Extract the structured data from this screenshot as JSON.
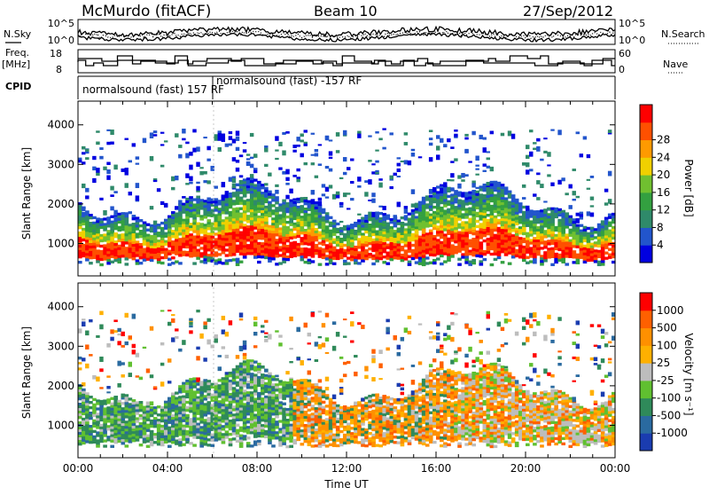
{
  "header": {
    "station": "McMurdo (fitACF)",
    "beam": "Beam 10",
    "date": "27/Sep/2012"
  },
  "summary": {
    "left_labels": [
      "N.Sky",
      "Freq.",
      "[MHz]",
      "CPID"
    ],
    "right_labels": [
      "N.Search",
      "Nave"
    ],
    "count_ticks": [
      "10^5",
      "10^0"
    ],
    "freq_ticks": [
      "18",
      "8"
    ],
    "nave_ticks": [
      "60",
      "0"
    ],
    "cpid_labels": [
      "normalsound (fast) 157 RF",
      "normalsound (fast) -157 RF"
    ]
  },
  "colors": {
    "power": [
      "#0000e0",
      "#2255cc",
      "#2f8a6a",
      "#33a040",
      "#70c030",
      "#f0d000",
      "#ff9a00",
      "#ff5000",
      "#ff0000"
    ],
    "velocity": [
      "#1a3cb0",
      "#2a6aa0",
      "#2f8a5a",
      "#60c030",
      "#bdbdbd",
      "#ffb000",
      "#ff9000",
      "#ff6000",
      "#ff0000"
    ]
  },
  "chart_data": [
    {
      "type": "heatmap",
      "quantity": "Power",
      "xlabel": "",
      "ylabel": "Slant Range [km]",
      "x_ticks": [
        "00:00",
        "04:00",
        "08:00",
        "12:00",
        "16:00",
        "20:00",
        "00:00"
      ],
      "y_ticks": [
        1000,
        2000,
        3000,
        4000
      ],
      "ylim": [
        180,
        4600
      ],
      "colorbar_label": "Power [dB]",
      "colorbar_ticks": [
        4,
        8,
        12,
        16,
        20,
        24,
        28
      ],
      "colorbar_range": [
        0,
        30
      ]
    },
    {
      "type": "heatmap",
      "quantity": "Velocity",
      "xlabel": "Time UT",
      "ylabel": "Slant Range [km]",
      "x_ticks": [
        "00:00",
        "04:00",
        "08:00",
        "12:00",
        "16:00",
        "20:00",
        "00:00"
      ],
      "y_ticks": [
        1000,
        2000,
        3000,
        4000
      ],
      "ylim": [
        180,
        4600
      ],
      "colorbar_label": "Velocity [m s⁻¹]",
      "colorbar_ticks": [
        "1000",
        "500",
        "100",
        "25",
        "-25",
        "-100",
        "-500",
        "-1000"
      ]
    }
  ]
}
